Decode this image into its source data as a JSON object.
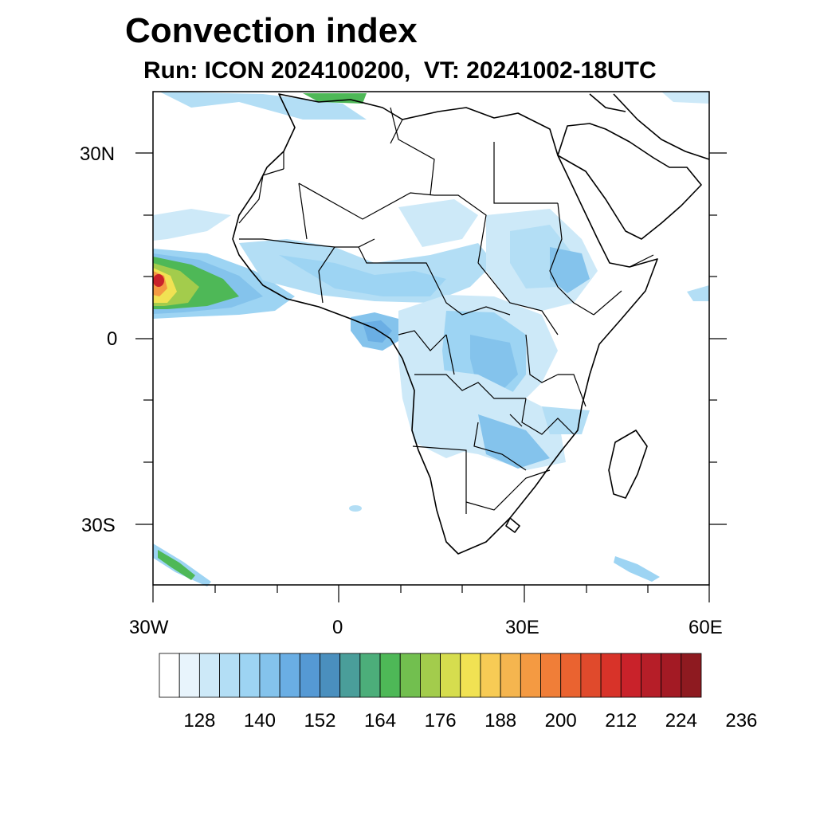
{
  "title": "Convection index",
  "subtitle": "Run: ICON 2024100200,  VT: 20241002-18UTC",
  "map": {
    "region": "Africa",
    "lon_range": [
      -30,
      60
    ],
    "lat_range": [
      -40,
      40
    ],
    "x_ticks": [
      "30W",
      "0",
      "30E",
      "60E"
    ],
    "y_ticks": [
      "30N",
      "0",
      "30S"
    ]
  },
  "colorbar": {
    "labels": [
      "128",
      "140",
      "152",
      "164",
      "176",
      "188",
      "200",
      "212",
      "224",
      "236"
    ],
    "colors": [
      "#ffffff",
      "#e8f4fc",
      "#cde9f8",
      "#b3def5",
      "#9dd4f3",
      "#84c3ec",
      "#6aaee4",
      "#5599d4",
      "#4a8fbe",
      "#4a9e9a",
      "#4cae7a",
      "#4eb857",
      "#72bf4f",
      "#a3cc4c",
      "#d6dd4e",
      "#f1e253",
      "#f7cb55",
      "#f5b54f",
      "#f49a42",
      "#f07e38",
      "#ea6330",
      "#e04a2c",
      "#d83329",
      "#c9222a",
      "#b61e28",
      "#a31a24",
      "#8e1a20"
    ]
  }
}
